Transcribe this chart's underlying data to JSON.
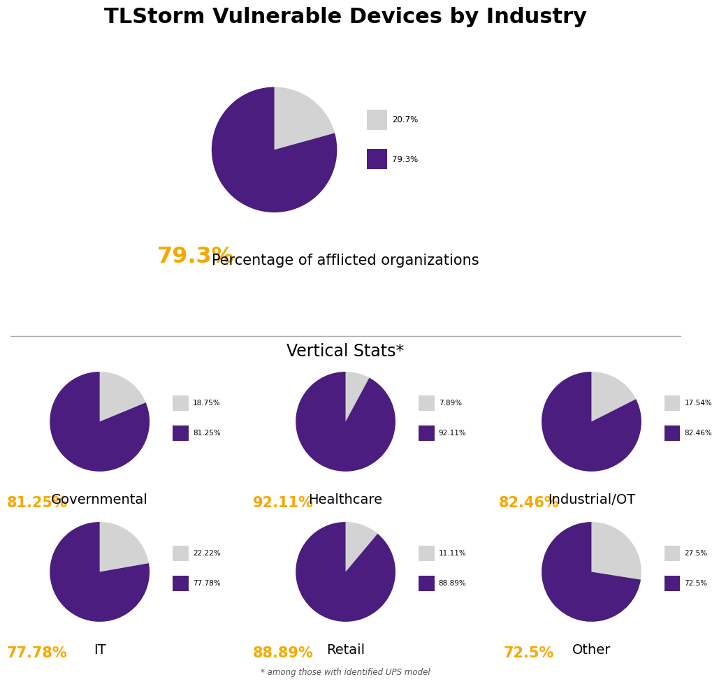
{
  "title": "TLStorm Vulnerable Devices by Industry",
  "main_pie": {
    "values": [
      20.7,
      79.3
    ],
    "colors": [
      "#d3d3d3",
      "#4b1d7e"
    ],
    "label": "79.3%",
    "legend_labels": [
      "20.7%",
      "79.3%"
    ],
    "subtitle": "Percentage of afflicted organizations"
  },
  "vertical_title": "Vertical Stats*",
  "vertical_footnote": "* among those with identified UPS model",
  "small_pies": [
    {
      "name": "Governmental",
      "values": [
        18.75,
        81.25
      ],
      "colors": [
        "#d3d3d3",
        "#4b1d7e"
      ],
      "label": "81.25%",
      "legend_labels": [
        "18.75%",
        "81.25%"
      ]
    },
    {
      "name": "Healthcare",
      "values": [
        7.89,
        92.11
      ],
      "colors": [
        "#d3d3d3",
        "#4b1d7e"
      ],
      "label": "92.11%",
      "legend_labels": [
        "7.89%",
        "92.11%"
      ]
    },
    {
      "name": "Industrial/OT",
      "values": [
        17.54,
        82.46
      ],
      "colors": [
        "#d3d3d3",
        "#4b1d7e"
      ],
      "label": "82.46%",
      "legend_labels": [
        "17.54%",
        "82.46%"
      ]
    },
    {
      "name": "IT",
      "values": [
        22.22,
        77.78
      ],
      "colors": [
        "#d3d3d3",
        "#4b1d7e"
      ],
      "label": "77.78%",
      "legend_labels": [
        "22.22%",
        "77.78%"
      ]
    },
    {
      "name": "Retail",
      "values": [
        11.11,
        88.89
      ],
      "colors": [
        "#d3d3d3",
        "#4b1d7e"
      ],
      "label": "88.89%",
      "legend_labels": [
        "11.11%",
        "88.89%"
      ]
    },
    {
      "name": "Other",
      "values": [
        27.5,
        72.5
      ],
      "colors": [
        "#d3d3d3",
        "#4b1d7e"
      ],
      "label": "72.5%",
      "legend_labels": [
        "27.5%",
        "72.5%"
      ]
    }
  ],
  "purple_color": "#4b1d7e",
  "gray_color": "#d3d3d3",
  "gold_color": "#f5a800",
  "background_color": "#ffffff",
  "title_fontsize": 22,
  "subtitle_fontsize": 15,
  "small_label_fontsize": 15,
  "legend_fontsize": 7.5,
  "name_fontsize": 14,
  "vertical_title_fontsize": 17
}
